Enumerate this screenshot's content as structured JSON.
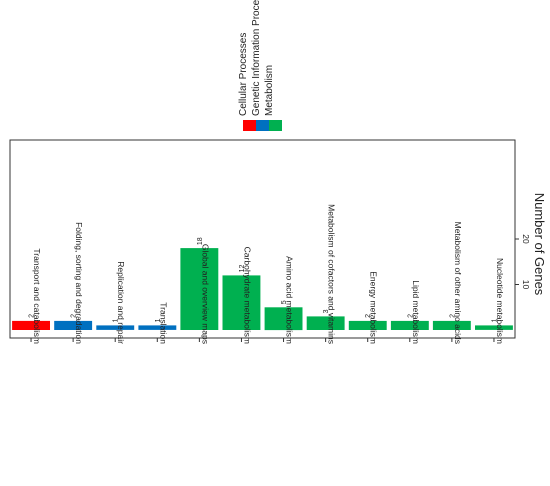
{
  "chart_data": {
    "type": "bar",
    "title": "",
    "xlabel": "",
    "ylabel": "Number of Genes",
    "ylim": [
      0,
      30
    ],
    "y_ticks": [
      10,
      20
    ],
    "grid": false,
    "legend_position": "top",
    "legend": [
      {
        "name": "Cellular Processes",
        "color": "#ff0000"
      },
      {
        "name": "Genetic Information Processing",
        "color": "#0070c0"
      },
      {
        "name": "Metabolism",
        "color": "#00b050"
      }
    ],
    "categories": [
      "Transport and catabolism",
      "Folding, sorting and degradation",
      "Replication and repair",
      "Translation",
      "Global and overview maps",
      "Carbohydrate metabolism",
      "Amino acid metabolism",
      "Metabolism of cofactors and vitamins",
      "Energy metabolism",
      "Lipid metabolism",
      "Metabolism of other amino acids",
      "Nucleotide metabolism"
    ],
    "values": [
      2,
      2,
      1,
      1,
      18,
      12,
      5,
      3,
      2,
      2,
      2,
      1
    ],
    "value_labels": [
      "2",
      "2",
      "1",
      "1",
      "18",
      "12",
      "5",
      "3",
      "2",
      "2",
      "2",
      "1"
    ],
    "group_index": [
      0,
      1,
      1,
      1,
      2,
      2,
      2,
      2,
      2,
      2,
      2,
      2
    ]
  }
}
